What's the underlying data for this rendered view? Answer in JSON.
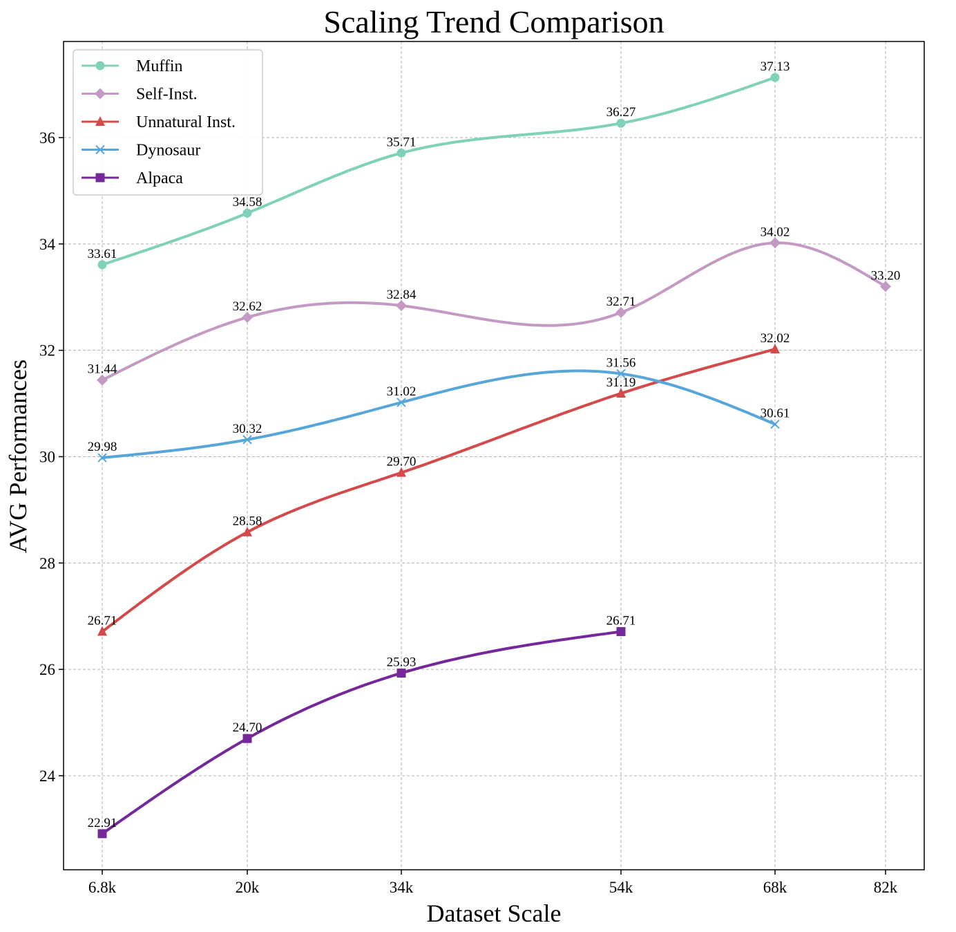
{
  "chart_data": {
    "type": "line",
    "title": "Scaling Trend Comparison",
    "xlabel": "Dataset Scale",
    "ylabel": "AVG Performances",
    "x_tick_labels": [
      "6.8k",
      "20k",
      "34k",
      "54k",
      "68k",
      "82k"
    ],
    "x_ticks": [
      6.8,
      20,
      34,
      54,
      68,
      82
    ],
    "y_ticks": [
      24,
      26,
      28,
      30,
      32,
      34,
      36
    ],
    "xlim": [
      3.3,
      86
    ],
    "ylim": [
      22.2,
      37.85
    ],
    "grid": true,
    "legend_position": "top-left",
    "series": [
      {
        "name": "Muffin",
        "color": "#7fd1b9",
        "marker": "circle",
        "x": [
          6.8,
          20,
          34,
          54,
          68
        ],
        "y": [
          33.61,
          34.58,
          35.71,
          36.27,
          37.13
        ],
        "labels": [
          "33.61",
          "34.58",
          "35.71",
          "36.27",
          "37.13"
        ]
      },
      {
        "name": "Self-Inst.",
        "color": "#c49ac5",
        "marker": "diamond",
        "x": [
          6.8,
          20,
          34,
          54,
          68,
          82
        ],
        "y": [
          31.44,
          32.62,
          32.84,
          32.71,
          34.02,
          33.2
        ],
        "labels": [
          "31.44",
          "32.62",
          "32.84",
          "32.71",
          "34.02",
          "33.20"
        ]
      },
      {
        "name": "Unnatural Inst.",
        "color": "#d44a4a",
        "marker": "triangle",
        "x": [
          6.8,
          20,
          34,
          54,
          68
        ],
        "y": [
          26.71,
          28.58,
          29.7,
          31.19,
          32.02
        ],
        "labels": [
          "26.71",
          "28.58",
          "29.70",
          "31.19",
          "32.02"
        ]
      },
      {
        "name": "Dynosaur",
        "color": "#57a6d9",
        "marker": "x",
        "x": [
          6.8,
          20,
          34,
          54,
          68
        ],
        "y": [
          29.98,
          30.32,
          31.02,
          31.56,
          30.61
        ],
        "labels": [
          "29.98",
          "30.32",
          "31.02",
          "31.56",
          "30.61"
        ]
      },
      {
        "name": "Alpaca",
        "color": "#74289a",
        "marker": "square",
        "x": [
          6.8,
          20,
          34,
          54
        ],
        "y": [
          22.91,
          24.7,
          25.93,
          26.71
        ],
        "labels": [
          "22.91",
          "24.70",
          "25.93",
          "26.71"
        ]
      }
    ]
  }
}
